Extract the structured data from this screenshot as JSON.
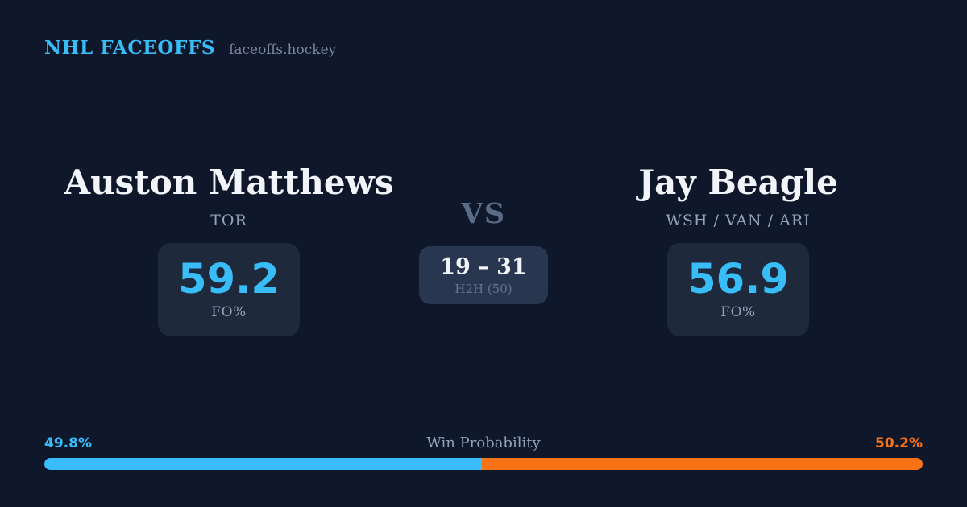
{
  "header": {
    "brand": "NHL FACEOFFS",
    "site": "faceoffs.hockey"
  },
  "players": [
    {
      "name": "Auston Matthews",
      "teams": "TOR",
      "fo_pct": "59.2",
      "stat_label": "FO%"
    },
    {
      "name": "Jay Beagle",
      "teams": "WSH / VAN / ARI",
      "fo_pct": "56.9",
      "stat_label": "FO%"
    }
  ],
  "center": {
    "vs_label": "VS",
    "h2h_score": "19 – 31",
    "h2h_label": "H2H (50)"
  },
  "win_probability": {
    "title": "Win Probability",
    "left_label": "49.8%",
    "right_label": "50.2%",
    "left_value": 49.8,
    "right_value": 50.2
  },
  "colors": {
    "background": "#0f172a",
    "card": "#1e293b",
    "h2h_card": "#293650",
    "accent_blue": "#38bdf8",
    "accent_orange": "#f97316",
    "name_text": "#f1f5f9",
    "muted_text": "#94a3b8",
    "vs_text": "#5b6b85",
    "h2h_muted": "#64748b",
    "site_text": "#7d879d",
    "wp_label": "#93a1ba"
  }
}
